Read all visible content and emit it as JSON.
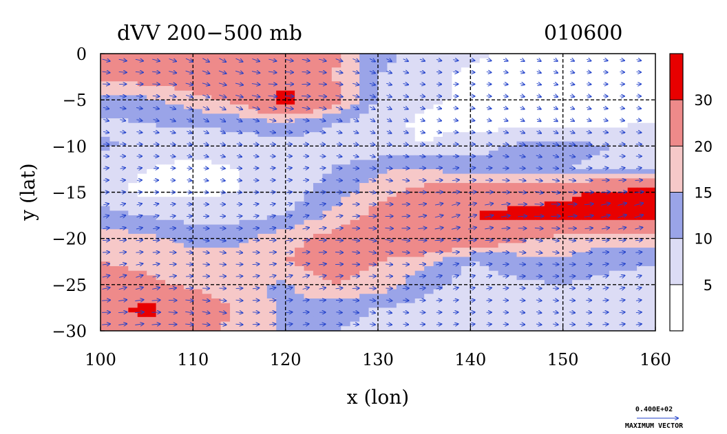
{
  "chart_data": {
    "type": "heatmap",
    "title": "dVV 200−500 mb",
    "timestamp": "010600",
    "xlabel": "x (lon)",
    "ylabel": "y (lat)",
    "xlim": [
      100,
      160
    ],
    "ylim": [
      -30,
      0
    ],
    "x_ticks": [
      "100",
      "110",
      "120",
      "130",
      "140",
      "150",
      "160"
    ],
    "y_ticks": [
      "0",
      "−5",
      "−10",
      "−15",
      "−20",
      "−25",
      "−30"
    ],
    "grid": true,
    "colorbar": {
      "labels": [
        "5",
        "10",
        "15",
        "20",
        "30"
      ],
      "levels": [
        {
          "color": "#ffffff"
        },
        {
          "color": "#dcdcf5"
        },
        {
          "color": "#9aa4e8"
        },
        {
          "color": "#f6c8c8"
        },
        {
          "color": "#ee8a8a"
        },
        {
          "color": "#e80000"
        }
      ]
    },
    "vector_legend": {
      "value_label": "0.400E+02",
      "caption": "MAXIMUM VECTOR",
      "color": "#1f3fc9"
    },
    "field_lat": [
      0,
      -2.5,
      -5,
      -7.5,
      -10,
      -12.5,
      -15,
      -17.5,
      -20,
      -22.5,
      -25,
      -27.5,
      -30
    ],
    "field_lon": [
      100,
      105,
      110,
      115,
      120,
      125,
      130,
      135,
      140,
      145,
      150,
      155,
      160
    ],
    "field_values": [
      [
        26,
        24,
        22,
        22,
        24,
        22,
        12,
        8,
        6,
        4,
        2,
        3,
        4
      ],
      [
        22,
        23,
        24,
        25,
        28,
        20,
        10,
        6,
        4,
        3,
        2,
        2,
        3
      ],
      [
        12,
        14,
        18,
        22,
        33,
        24,
        9,
        6,
        4,
        3,
        3,
        2,
        3
      ],
      [
        9,
        10,
        11,
        12,
        14,
        10,
        7,
        4,
        3,
        3,
        2,
        4,
        5
      ],
      [
        11,
        8,
        6,
        7,
        8,
        7,
        6,
        5,
        8,
        11,
        12,
        10,
        9
      ],
      [
        8,
        5,
        4,
        5,
        7,
        10,
        14,
        16,
        12,
        11,
        10,
        9,
        8
      ],
      [
        6,
        4,
        4,
        5,
        8,
        12,
        18,
        22,
        24,
        26,
        28,
        32,
        33
      ],
      [
        12,
        10,
        8,
        8,
        10,
        16,
        22,
        26,
        30,
        32,
        33,
        33,
        33
      ],
      [
        18,
        16,
        14,
        14,
        18,
        22,
        24,
        30,
        26,
        22,
        18,
        17,
        18
      ],
      [
        20,
        18,
        16,
        17,
        20,
        24,
        20,
        16,
        10,
        12,
        14,
        12,
        11
      ],
      [
        24,
        22,
        18,
        16,
        14,
        20,
        18,
        12,
        8,
        9,
        10,
        8,
        6
      ],
      [
        28,
        32,
        26,
        18,
        14,
        12,
        10,
        8,
        6,
        6,
        8,
        9,
        8
      ],
      [
        26,
        28,
        24,
        18,
        14,
        10,
        8,
        6,
        5,
        6,
        8,
        10,
        10
      ]
    ]
  }
}
